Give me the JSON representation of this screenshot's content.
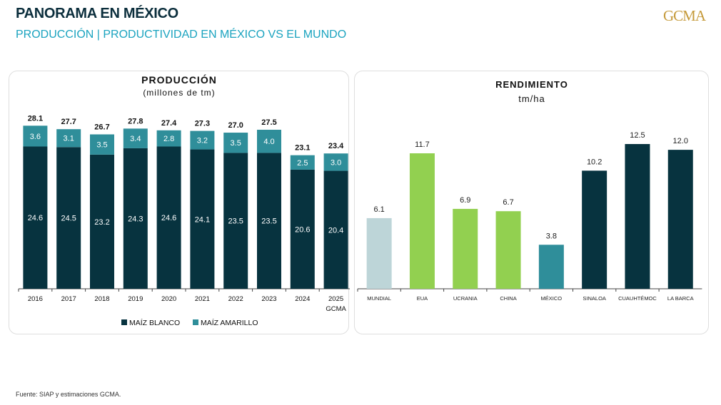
{
  "header": {
    "title": "PANORAMA EN MÉXICO",
    "subtitle": "PRODUCCIÓN | PRODUCTIVIDAD EN MÉXICO VS EL MUNDO",
    "logo": "GCMA"
  },
  "footer": {
    "source": "Fuente: SIAP y estimaciones GCMA."
  },
  "colors": {
    "blanco": "#07333f",
    "amarillo": "#2f8e9a",
    "mundial": "#bdd5d8",
    "green": "#92d050",
    "mexico": "#2f8e9a",
    "dark": "#07333f"
  },
  "chart_data": [
    {
      "type": "bar",
      "stacked": true,
      "title": "PRODUCCIÓN",
      "subtitle": "(millones de tm)",
      "categories": [
        "2016",
        "2017",
        "2018",
        "2019",
        "2020",
        "2021",
        "2022",
        "2023",
        "2024",
        "2025 GCMA"
      ],
      "series": [
        {
          "name": "MAÍZ BLANCO",
          "values": [
            24.6,
            24.5,
            23.2,
            24.3,
            24.6,
            24.1,
            23.5,
            23.5,
            20.6,
            20.4
          ]
        },
        {
          "name": "MAÍZ AMARILLO",
          "values": [
            3.6,
            3.1,
            3.5,
            3.4,
            2.8,
            3.2,
            3.5,
            4.0,
            2.5,
            3.0
          ]
        }
      ],
      "totals": [
        "28.1",
        "27.7",
        "26.7",
        "27.8",
        "27.4",
        "27.3",
        "27.0",
        "27.5",
        "23.1",
        "23.4"
      ],
      "legend": "bottom"
    },
    {
      "type": "bar",
      "title": "RENDIMIENTO",
      "subtitle": "tm/ha",
      "categories": [
        "MUNDIAL",
        "EUA",
        "UCRANIA",
        "CHINA",
        "MÉXICO",
        "SINALOA",
        "CUAUHTÉMOC",
        "LA BARCA"
      ],
      "values": [
        6.1,
        11.7,
        6.9,
        6.7,
        3.8,
        10.2,
        12.5,
        12.0
      ],
      "colorKeys": [
        "mundial",
        "green",
        "green",
        "green",
        "mexico",
        "dark",
        "dark",
        "dark"
      ]
    }
  ]
}
